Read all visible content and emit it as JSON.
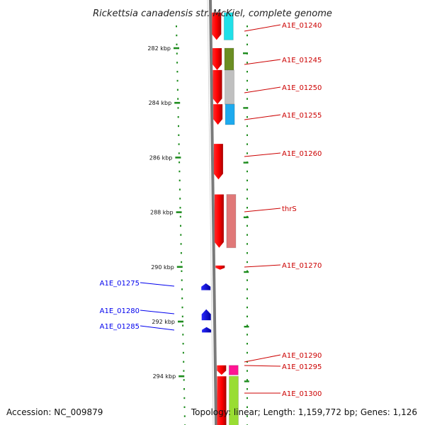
{
  "title": "Rickettsia canadensis str. McKiel, complete genome",
  "accession": "Accession: NC_009879",
  "summary": "Topology: linear; Length: 1,159,772 bp; Genes: 1,126",
  "axis": {
    "unit": "kbp",
    "ticks": [
      {
        "kb": 282,
        "label": "282 kbp"
      },
      {
        "kb": 284,
        "label": "284 kbp"
      },
      {
        "kb": 286,
        "label": "286 kbp"
      },
      {
        "kb": 288,
        "label": "288 kbp"
      },
      {
        "kb": 290,
        "label": "290 kbp"
      },
      {
        "kb": 292,
        "label": "292 kbp"
      },
      {
        "kb": 294,
        "label": "294 kbp"
      }
    ]
  },
  "genes": [
    {
      "name": "A1E_01240",
      "strand": "forward",
      "start_kb": 280.7,
      "end_kb": 281.7,
      "color": "#cc0000",
      "cog_color": "#20e0e8"
    },
    {
      "name": "A1E_01245",
      "strand": "forward",
      "start_kb": 282.0,
      "end_kb": 282.8,
      "color": "#cc0000",
      "cog_color": "#6b8e23"
    },
    {
      "name": "A1E_01250",
      "strand": "forward",
      "start_kb": 282.8,
      "end_kb": 284.05,
      "color": "#cc0000",
      "cog_color": "#c0c0c0"
    },
    {
      "name": "A1E_01255",
      "strand": "forward",
      "start_kb": 284.05,
      "end_kb": 284.8,
      "color": "#cc0000",
      "cog_color": "#1eaaee"
    },
    {
      "name": "A1E_01260",
      "strand": "forward",
      "start_kb": 285.5,
      "end_kb": 286.8,
      "color": "#cc0000",
      "cog_color": ""
    },
    {
      "name": "thrS",
      "strand": "forward",
      "start_kb": 287.35,
      "end_kb": 289.3,
      "color": "#cc0000",
      "cog_color": "#e07878"
    },
    {
      "name": "A1E_01270",
      "strand": "forward",
      "start_kb": 289.95,
      "end_kb": 290.1,
      "color": "#cc0000",
      "cog_color": ""
    },
    {
      "name": "A1E_01275",
      "strand": "reverse",
      "start_kb": 290.6,
      "end_kb": 290.85,
      "color": "#0000ee",
      "cog_color": ""
    },
    {
      "name": "A1E_01280",
      "strand": "reverse",
      "start_kb": 291.55,
      "end_kb": 291.95,
      "color": "#0000ee",
      "cog_color": ""
    },
    {
      "name": "A1E_01285",
      "strand": "reverse",
      "start_kb": 292.2,
      "end_kb": 292.4,
      "color": "#0000ee",
      "cog_color": ""
    },
    {
      "name": "A1E_01290",
      "strand": "forward",
      "start_kb": 293.6,
      "end_kb": 293.95,
      "color": "#cc0000",
      "cog_color": "#ff1493"
    },
    {
      "name": "A1E_01295",
      "strand": "forward",
      "start_kb": 293.6,
      "end_kb": 293.95,
      "color": "#cc0000",
      "cog_color": "#ff1493"
    },
    {
      "name": "A1E_01300",
      "strand": "forward",
      "start_kb": 294.0,
      "end_kb": 296.0,
      "color": "#cc0000",
      "cog_color": "#99dd33"
    }
  ]
}
